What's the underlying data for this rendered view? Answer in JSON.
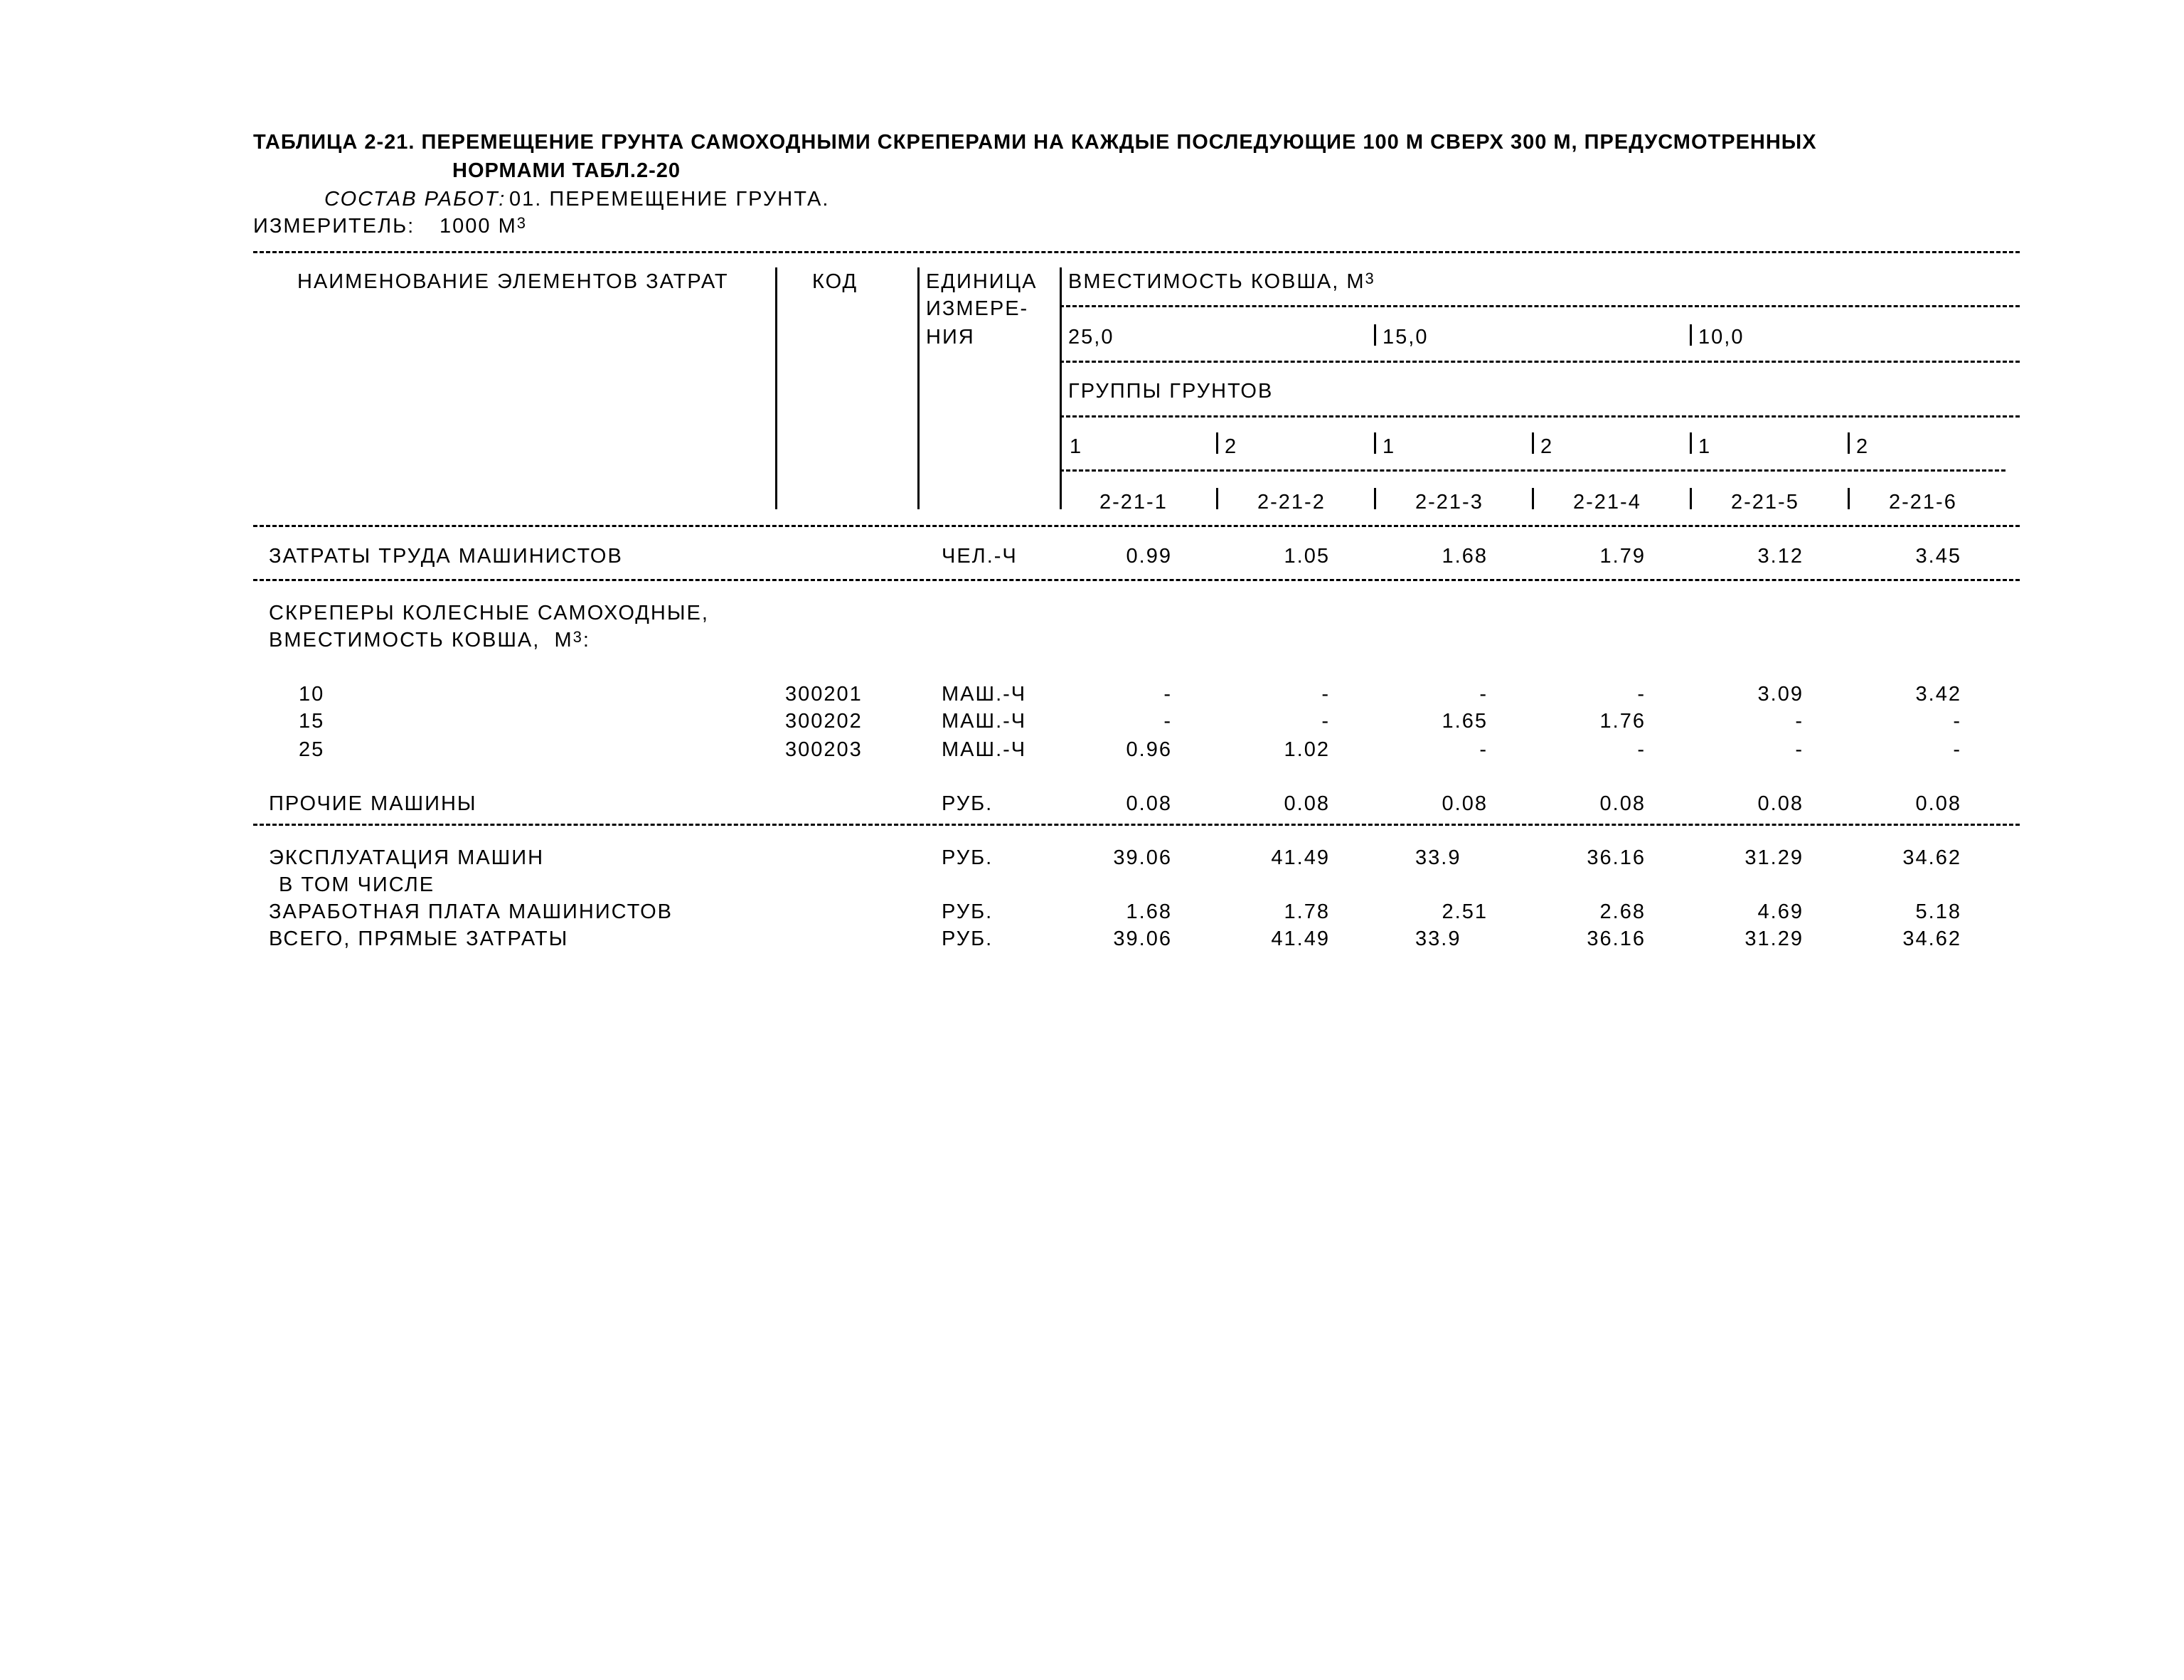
{
  "title": {
    "line1": "ТАБЛИЦА 2-21. ПЕРЕМЕЩЕНИЕ ГРУНТА САМОХОДНЫМИ СКРЕПЕРАМИ НА КАЖДЫЕ ПОСЛЕДУЮЩИЕ 100 М СВЕРХ 300 М, ПРЕДУСМОТРЕННЫХ",
    "line2": "НОРМАМИ ТАБЛ.2-20"
  },
  "work": {
    "label": "СОСТАВ РАБОТ:",
    "text": "01. ПЕРЕМЕЩЕНИЕ ГРУНТА."
  },
  "measure": {
    "label": "ИЗМЕРИТЕЛЬ:",
    "value": "1000 М",
    "sup": "3"
  },
  "header": {
    "name": "НАИМЕНОВАНИЕ ЭЛЕМЕНТОВ ЗАТРАТ",
    "code": "КОД",
    "unit_1": "ЕДИНИЦА",
    "unit_2": "ИЗМЕРЕ-",
    "unit_3": "НИЯ",
    "capacity": "ВМЕСТИМОСТЬ КОВША, М",
    "capacity_sup": "3",
    "cap_values": [
      "25,0",
      "15,0",
      "10,0"
    ],
    "groups": "ГРУППЫ ГРУНТОВ",
    "group_nums": [
      "1",
      "2",
      "1",
      "2",
      "1",
      "2"
    ],
    "codes": [
      "2-21-1",
      "2-21-2",
      "2-21-3",
      "2-21-4",
      "2-21-5",
      "2-21-6"
    ]
  },
  "rows": {
    "labor": {
      "name": "ЗАТРАТЫ ТРУДА МАШИНИСТОВ",
      "unit": "ЧЕЛ.-Ч",
      "values": [
        "0.99",
        "1.05",
        "1.68",
        "1.79",
        "3.12",
        "3.45"
      ]
    },
    "scrapers": {
      "name1": "СКРЕПЕРЫ КОЛЕСНЫЕ САМОХОДНЫЕ,",
      "name2": "ВМЕСТИМОСТЬ КОВША,  М",
      "name2_sup": "3",
      "name2_end": ":"
    },
    "machines": [
      {
        "name": "10",
        "code": "300201",
        "unit": "МАШ.-Ч",
        "values": [
          "-",
          "-",
          "-",
          "-",
          "3.09",
          "3.42"
        ]
      },
      {
        "name": "15",
        "code": "300202",
        "unit": "МАШ.-Ч",
        "values": [
          "-",
          "-",
          "1.65",
          "1.76",
          "-",
          "-"
        ]
      },
      {
        "name": "25",
        "code": "300203",
        "unit": "МАШ.-Ч",
        "values": [
          "0.96",
          "1.02",
          "-",
          "-",
          "-",
          "-"
        ]
      }
    ],
    "other": {
      "name": "ПРОЧИЕ МАШИНЫ",
      "unit": "РУБ.",
      "values": [
        "0.08",
        "0.08",
        "0.08",
        "0.08",
        "0.08",
        "0.08"
      ]
    },
    "exploitation": {
      "name": "ЭКСПЛУАТАЦИЯ МАШИН",
      "unit": "РУБ.",
      "values": [
        "39.06",
        "41.49",
        "33.9",
        "36.16",
        "31.29",
        "34.62"
      ]
    },
    "including": {
      "name": "В ТОМ ЧИСЛЕ"
    },
    "salary": {
      "name": "ЗАРАБОТНАЯ ПЛАТА МАШИНИСТОВ",
      "unit": "РУБ.",
      "values": [
        "1.68",
        "1.78",
        "2.51",
        "2.68",
        "4.69",
        "5.18"
      ]
    },
    "total": {
      "name": "ВСЕГО, ПРЯМЫЕ ЗАТРАТЫ",
      "unit": "РУБ.",
      "values": [
        "39.06",
        "41.49",
        "33.9",
        "36.16",
        "31.29",
        "34.62"
      ]
    }
  }
}
